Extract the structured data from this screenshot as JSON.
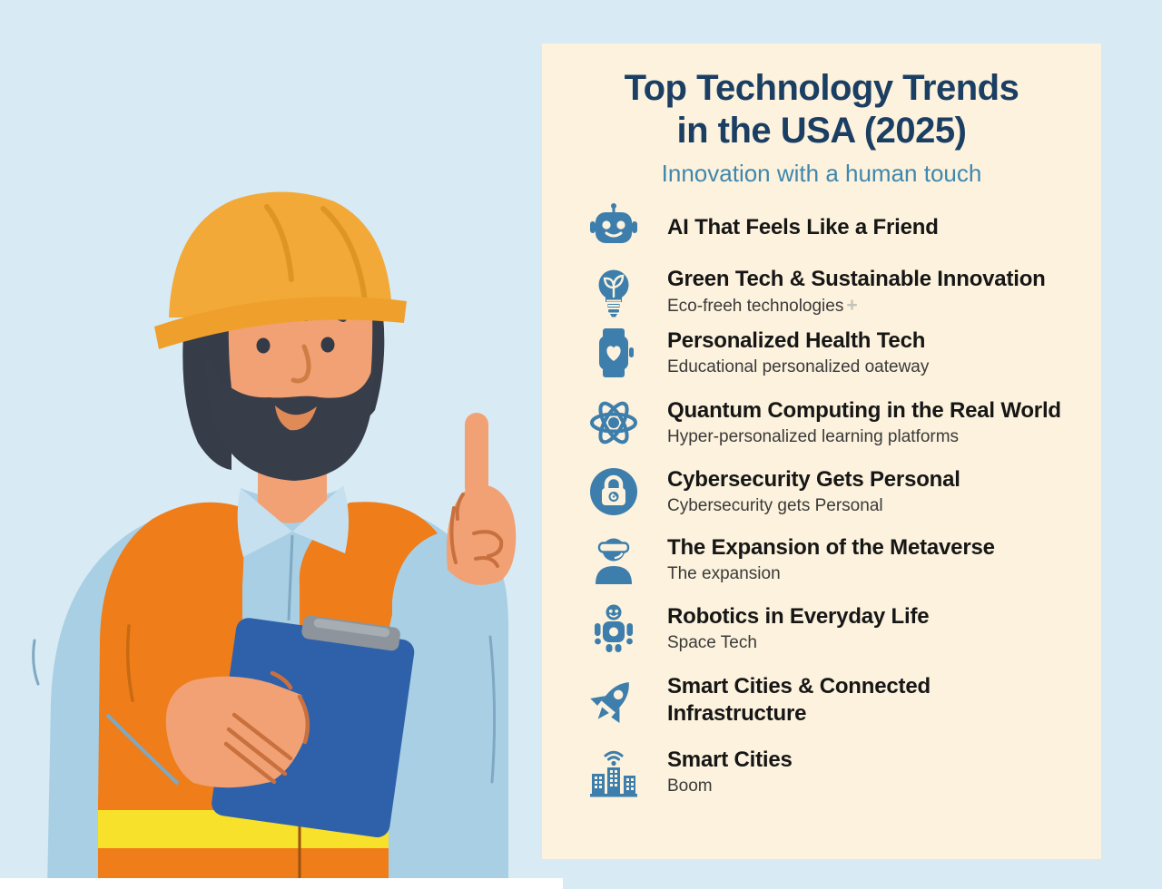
{
  "header": {
    "title_line1": "Top Technology Trends",
    "title_line2": "in the USA (2025)",
    "subtitle": "Innovation with a human touch"
  },
  "trends": {
    "items": [
      {
        "icon": "robot-head-icon",
        "title": "AI That Feels Like a Friend",
        "subtitle": ""
      },
      {
        "icon": "eco-lightbulb-icon",
        "title": "Green Tech & Sustainable Innovation",
        "subtitle": "Eco-freeh technologies",
        "subtitle_suffix": "+"
      },
      {
        "icon": "smartwatch-heart-icon",
        "title": "Personalized Health Tech",
        "subtitle": "Educational personalized oateway"
      },
      {
        "icon": "atom-icon",
        "title": "Quantum Computing in the Real World",
        "subtitle": "Hyper-personalized learning platforms"
      },
      {
        "icon": "lock-fingerprint-icon",
        "title": "Cybersecurity Gets Personal",
        "subtitle": "Cybersecurity gets Personal"
      },
      {
        "icon": "vr-person-icon",
        "title": "The Expansion of the Metaverse",
        "subtitle": "The expansion"
      },
      {
        "icon": "robot-body-icon",
        "title": "Robotics in Everyday Life",
        "subtitle": "Space Tech"
      },
      {
        "icon": "rocket-icon",
        "title": "Smart Cities & Connected\nInfrastructure",
        "subtitle": ""
      },
      {
        "icon": "smart-city-icon",
        "title": "Smart Cities",
        "subtitle": "Boom"
      }
    ]
  },
  "colors": {
    "page_bg": "#d8eaf4",
    "panel_bg": "#fcf2dd",
    "title_navy": "#1b3e63",
    "subtitle_blue": "#3f87ad",
    "icon_blue": "#3d7eac",
    "item_title_black": "#161616",
    "item_subtitle_gray": "#3a3a3a",
    "sparkle_gray": "#c3c3ba",
    "hat_orange": "#f2a938",
    "vest_orange": "#ee7d1a",
    "stripe_yellow": "#f8e12b",
    "shirt_blue": "#a9cfe4",
    "skin": "#f1a173",
    "beard_dark": "#383e49",
    "clipboard_blue": "#2e61aa",
    "clip_gray": "#8d949c",
    "bottom_bar_white": "#ffffff"
  }
}
